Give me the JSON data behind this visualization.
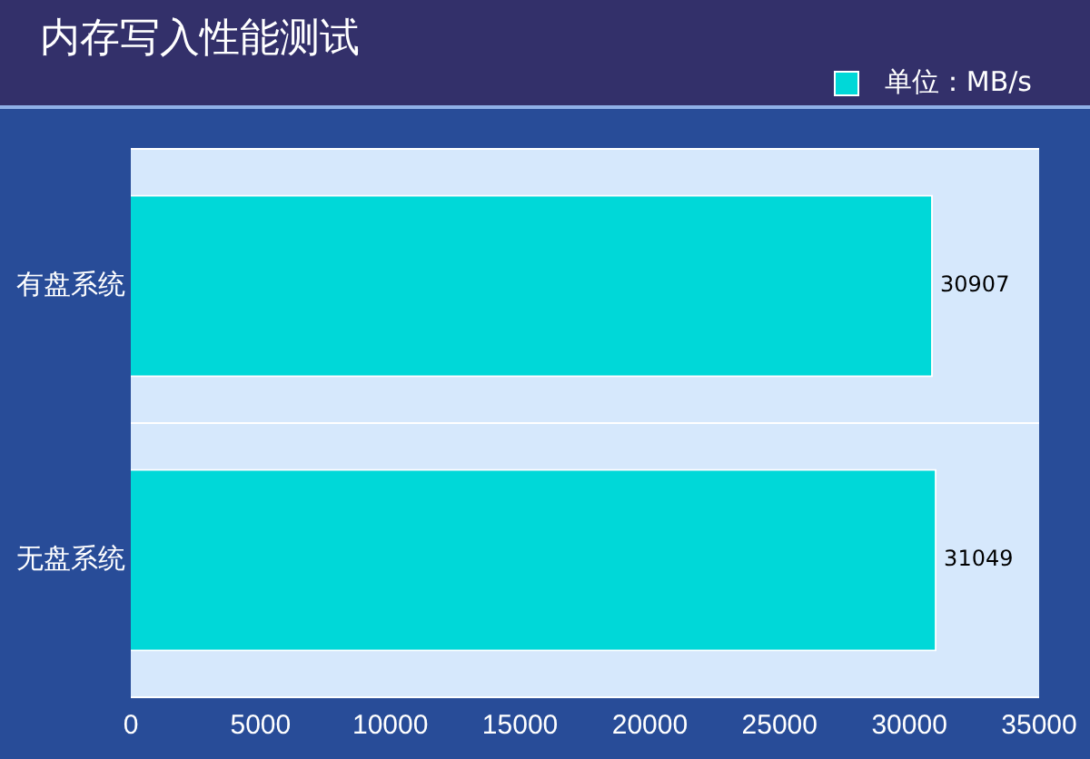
{
  "chart_data": {
    "type": "bar",
    "orientation": "horizontal",
    "title": "内存写入性能测试",
    "categories": [
      "有盘系统",
      "无盘系统"
    ],
    "series": [
      {
        "name": "单位：MB/s",
        "color": "#00d8d8",
        "values": [
          30907,
          31049
        ]
      }
    ],
    "xlim": [
      0,
      35000
    ],
    "xticks": [
      0,
      5000,
      10000,
      15000,
      20000,
      25000,
      30000,
      35000
    ],
    "grid": "y",
    "legend": "top right",
    "data_labels": true
  }
}
